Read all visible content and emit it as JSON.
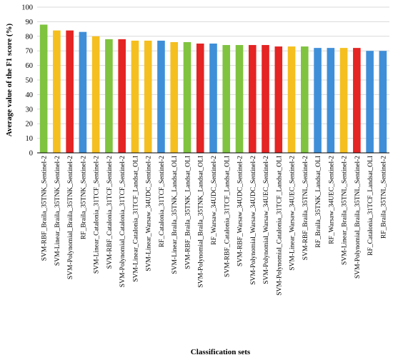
{
  "chart_data": {
    "type": "bar",
    "xlabel": "Classification sets",
    "ylabel": "Average value of the F1 score (%)",
    "ylim": [
      0,
      100
    ],
    "yticks": [
      0,
      10,
      20,
      30,
      40,
      50,
      60,
      70,
      80,
      90,
      100
    ],
    "grid": true,
    "categories": [
      "SVM-RBF_Braila_35TNK_Sentinel-2",
      "SVM-Linear_Braila_35TNK_Sentinel-2",
      "SVM-Polynomial_Braila_35TNK_Sentinel-2",
      "RF_Braila_35TNK_Sentinel-2",
      "SVM-Linear_Catalonia_31TCF_Sentinel-2",
      "SVM-RBF_Catalonia_31TCF_Sentinel-2",
      "SVM-Polynomial_Catalonia_31TCF_Sentinel-2",
      "SVM-Linear_Catalonia_31TCF_Landsat_OLI",
      "SVM-Linear_Warsaw_34UDC_Sentinel-2",
      "RF_Catalonia_31TCF_Sentinel-2",
      "SVM-Linear_Braila_35TNK_Landsat_OLI",
      "SVM-RBF_Braila_35TNK_Landsat_OLI",
      "SVM-Polynomial_Braila_35TNK_Landsat_OLI",
      "RF_Warsaw_34UDC_Sentinel-2",
      "SVM-RBF_Catalonia_31TCF_Landsat_OLI",
      "SVM-RBF_Warsaw_34UDC_Sentinel-2",
      "SVM-Polynomial_Warsaw_34UDC_Sentinel-2",
      "SVM-Polynomial_Warsaw_34UEC_Sentinel-2",
      "SVM-Polynomial_Catalonia_31TCF_Landsat_OLI",
      "SVM-Linear_Warsaw_34UEC_Sentinel-2",
      "SVM-RBF_Braila_35TNL_Sentinel-2",
      "RF_Braila_35TNK_Landsat_OLI",
      "RF_Warsaw_34UEC_Sentinel-2",
      "SVM-Linear_Braila_35TNL_Sentinel-2",
      "SVM-Polynomial_Braila_35TNL_Sentinel-2",
      "RF_Catalonia_31TCF_Landsat_OLI",
      "RF_Braila_35TNL_Sentinel-2"
    ],
    "values": [
      88,
      84,
      84,
      83,
      80,
      78,
      78,
      77,
      77,
      77,
      76,
      76,
      75,
      75,
      74,
      74,
      74,
      74,
      73,
      73,
      73,
      72,
      72,
      72,
      72,
      70,
      70
    ],
    "colors": {
      "SVM-RBF": "#7fc33f",
      "SVM-Linear": "#f5bf1f",
      "SVM-Polynomial": "#e52424",
      "RF": "#3f8fd8"
    },
    "bar_method": [
      "SVM-RBF",
      "SVM-Linear",
      "SVM-Polynomial",
      "RF",
      "SVM-Linear",
      "SVM-RBF",
      "SVM-Polynomial",
      "SVM-Linear",
      "SVM-Linear",
      "RF",
      "SVM-Linear",
      "SVM-RBF",
      "SVM-Polynomial",
      "RF",
      "SVM-RBF",
      "SVM-RBF",
      "SVM-Polynomial",
      "SVM-Polynomial",
      "SVM-Polynomial",
      "SVM-Linear",
      "SVM-RBF",
      "RF",
      "RF",
      "SVM-Linear",
      "SVM-Polynomial",
      "RF",
      "RF"
    ]
  }
}
